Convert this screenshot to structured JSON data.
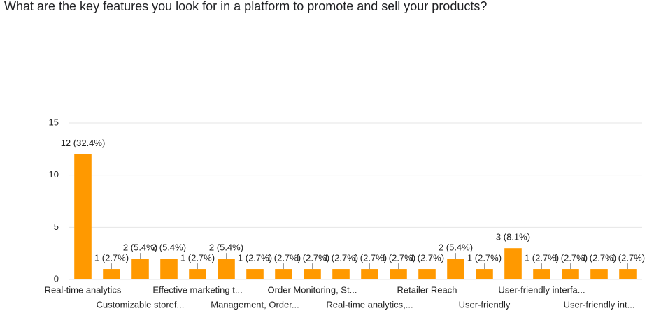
{
  "chart_data": {
    "type": "bar",
    "title": "What are the key features you look for in a platform to promote and sell your products?",
    "categories": [
      "Real-time analytics",
      null,
      "Customizable storef...",
      null,
      "Effective marketing t...",
      null,
      "Management, Order...",
      null,
      "Order Monitoring, St...",
      null,
      "Real-time analytics,...",
      null,
      "Retailer Reach",
      null,
      "User-friendly",
      null,
      "User-friendly interfa...",
      null,
      "User-friendly int...",
      null
    ],
    "values": [
      12,
      1,
      2,
      2,
      1,
      2,
      1,
      1,
      1,
      1,
      1,
      1,
      1,
      2,
      1,
      3,
      1,
      1,
      1,
      1
    ],
    "value_labels": [
      "12 (32.4%)",
      "1 (2.7%)",
      "2 (5.4%)",
      "2 (5.4%)",
      "1 (2.7%)",
      "2 (5.4%)",
      "1 (2.7%)",
      "1 (2.7%)",
      "1 (2.7%)",
      "1 (2.7%)",
      "1 (2.7%)",
      "1 (2.7%)",
      "1 (2.7%)",
      "2 (5.4%)",
      "1 (2.7%)",
      "3 (8.1%)",
      "1 (2.7%)",
      "1 (2.7%)",
      "1 (2.7%)",
      "1 (2.7%)"
    ],
    "color": "#ff9900",
    "ylim": [
      0,
      15
    ],
    "yticks": [
      0,
      5,
      10,
      15
    ],
    "grid": true
  }
}
